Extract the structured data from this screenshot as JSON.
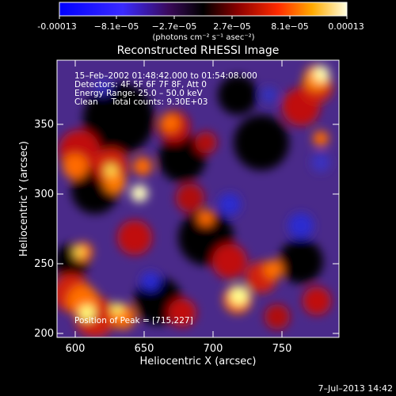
{
  "colorbar": {
    "tick_labels": [
      "-0.00013",
      "−8.1e−05",
      "−2.7e−05",
      "2.7e−05",
      "8.1e−05",
      "0.00013"
    ],
    "unit_label": "(photons cm⁻² s⁻¹ asec⁻²)"
  },
  "title": "Reconstructed RHESSI Image",
  "annotations": {
    "time_range": "15–Feb–2002 01:48:42.000 to 01:54:08.000",
    "detectors": "Detectors: 4F 5F 6F 7F 8F, Att 0",
    "energy_range": "Energy Range: 25.0 – 50.0 keV",
    "method_counts": "Clean     Total counts: 9.30E+03",
    "peak_position": "Position of Peak = [715,227]"
  },
  "axes": {
    "xlabel": "Heliocentric X (arcsec)",
    "ylabel": "Heliocentric Y (arcsec)",
    "xticks": [
      "600",
      "650",
      "700",
      "750"
    ],
    "yticks": [
      "200",
      "250",
      "300",
      "350"
    ]
  },
  "timestamp": "7–Jul–2013 14:42",
  "colors": {
    "background": "#000000",
    "text": "#ffffff",
    "map_low": "#4a2a8a",
    "map_high": "#ffffe0"
  }
}
